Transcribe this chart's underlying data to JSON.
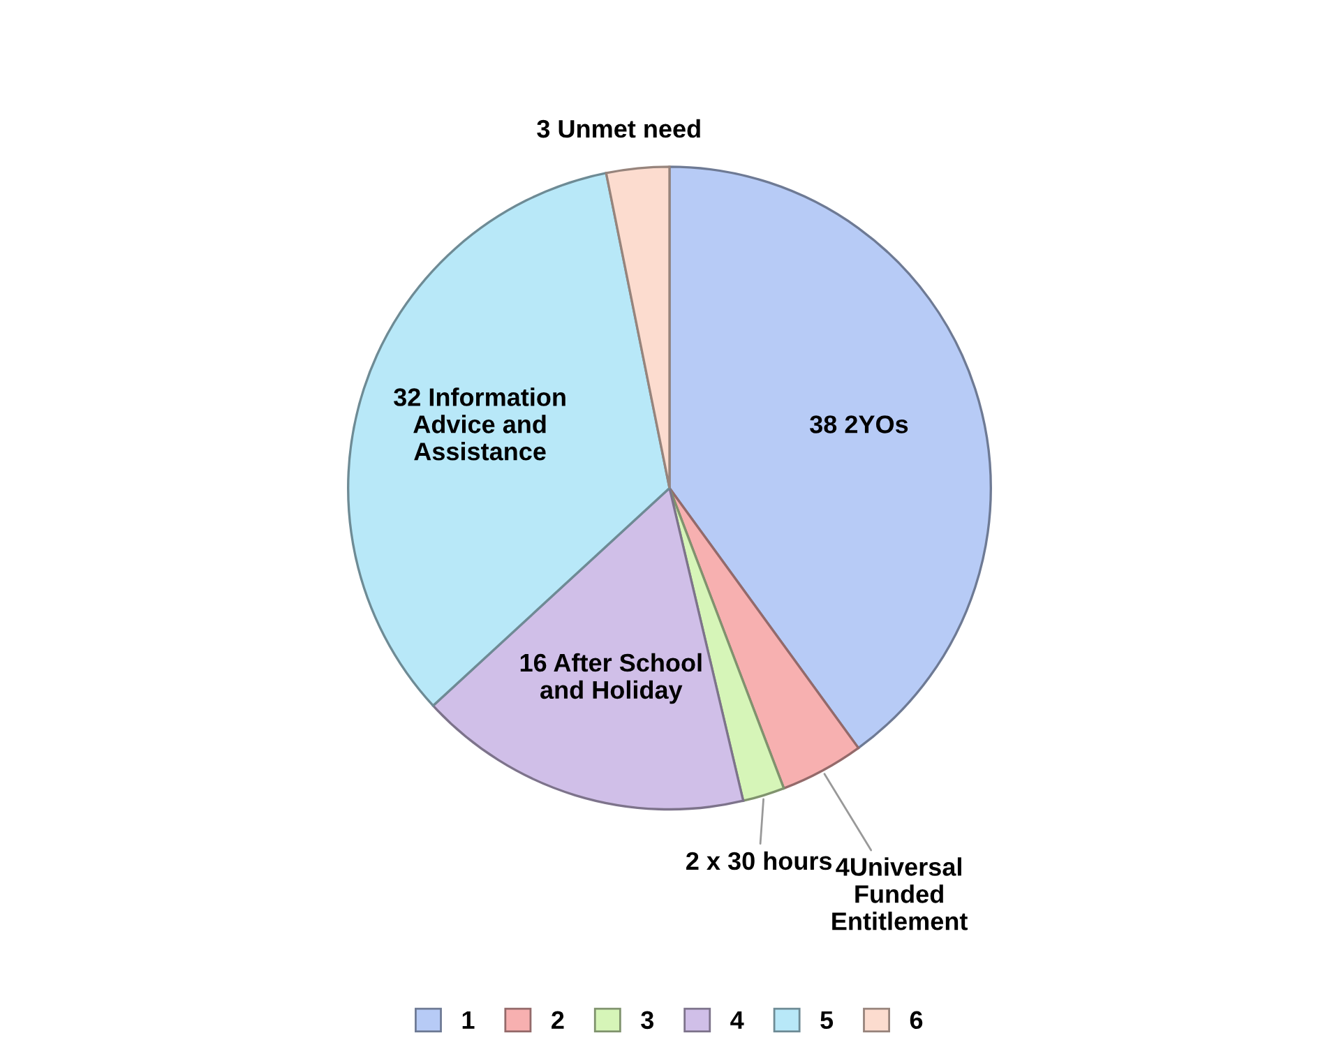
{
  "chart_data": {
    "type": "pie",
    "categories": [
      "1",
      "2",
      "3",
      "4",
      "5",
      "6"
    ],
    "values": [
      38,
      4,
      2,
      16,
      32,
      3
    ],
    "colors": [
      "#b7cbf6",
      "#f7b0b0",
      "#d6f5b8",
      "#d0bfe8",
      "#b8e8f8",
      "#fcdccf"
    ],
    "value_labels": [
      "38 2YOs",
      "4Universal\nFunded\nEntitlement",
      "2 x 30 hours",
      "16 After School\nand Holiday",
      "32 Information\nAdvice and\nAssistance",
      "3 Unmet need"
    ],
    "legend": "bottom"
  }
}
